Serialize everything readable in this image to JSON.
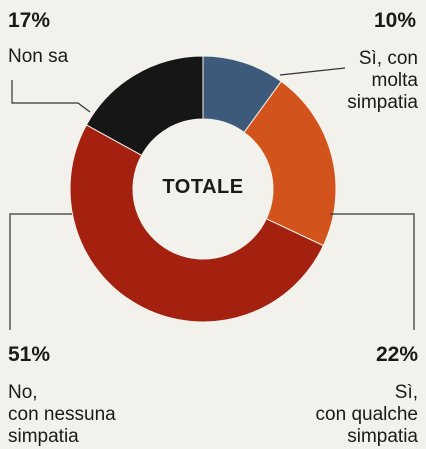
{
  "chart_data": {
    "type": "pie",
    "center_label": "TOTALE",
    "slices": [
      {
        "pct_label": "10%",
        "value": 10,
        "label": "Sì, con molta simpatia",
        "label_lines": [
          "Sì, con",
          "molta",
          "simpatia"
        ],
        "color": "#3d5a7a"
      },
      {
        "pct_label": "22%",
        "value": 22,
        "label": "Sì, con qualche simpatia",
        "label_lines": [
          "Sì,",
          "con qualche",
          "simpatia"
        ],
        "color": "#d2541c"
      },
      {
        "pct_label": "51%",
        "value": 51,
        "label": "No, con nessuna simpatia",
        "label_lines": [
          "No,",
          "con nessuna",
          "simpatia"
        ],
        "color": "#a3210e"
      },
      {
        "pct_label": "17%",
        "value": 17,
        "label": "Non sa",
        "label_lines": [
          "Non sa"
        ],
        "color": "#161616"
      }
    ]
  }
}
